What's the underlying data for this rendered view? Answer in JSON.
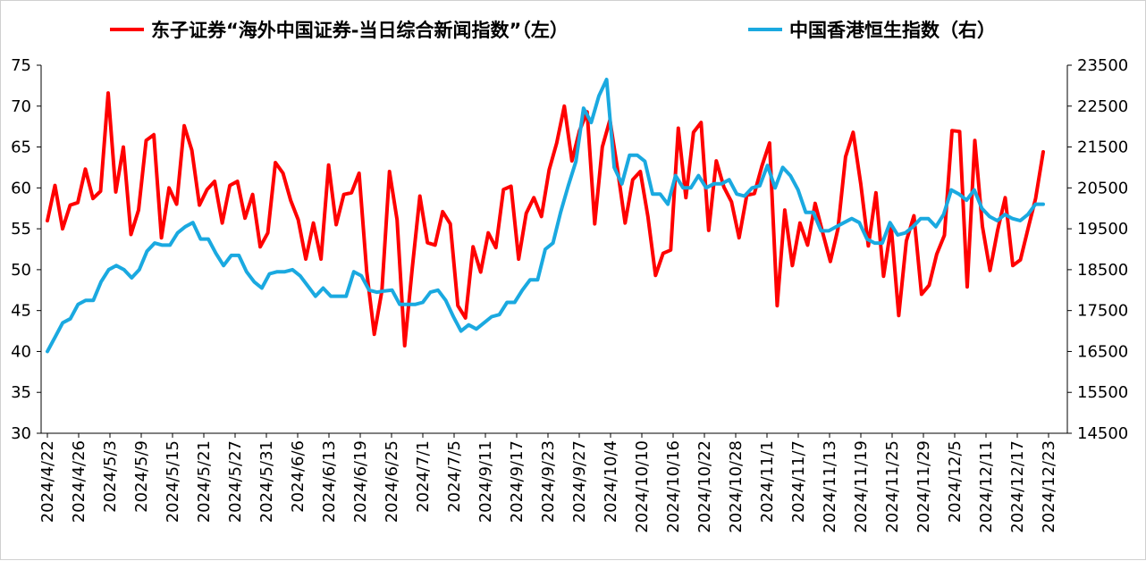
{
  "chart_data": {
    "type": "line",
    "legend": [
      {
        "label": "东子证券“海外中国证券-当日综合新闻指数”（左）",
        "color": "#ff0000"
      },
      {
        "label": "中国香港恒生指数（右）",
        "color": "#1aa9e0"
      }
    ],
    "legend_position": "top",
    "grid": false,
    "y_left": {
      "min": 30,
      "max": 75,
      "step": 5,
      "ticks": [
        "30",
        "35",
        "40",
        "45",
        "50",
        "55",
        "60",
        "65",
        "70",
        "75"
      ]
    },
    "y_right": {
      "min": 14500,
      "max": 23500,
      "step": 1000,
      "ticks": [
        "14500",
        "15500",
        "16500",
        "17500",
        "18500",
        "19500",
        "20500",
        "21500",
        "22500",
        "23500"
      ]
    },
    "x_tick_labels": [
      "2024/4/22",
      "2024/4/26",
      "2024/5/3",
      "2024/5/9",
      "2024/5/15",
      "2024/5/21",
      "2024/5/27",
      "2024/5/31",
      "2024/6/6",
      "2024/6/13",
      "2024/6/19",
      "2024/6/25",
      "2024/7/1",
      "2024/7/5",
      "2024/9/11",
      "2024/9/17",
      "2024/9/23",
      "2024/9/27",
      "2024/10/4",
      "2024/10/10",
      "2024/10/16",
      "2024/10/22",
      "2024/10/28",
      "2024/11/1",
      "2024/11/7",
      "2024/11/13",
      "2024/11/19",
      "2024/11/25",
      "2024/11/29",
      "2024/12/5",
      "2024/12/11",
      "2024/12/17",
      "2024/12/23"
    ],
    "series": [
      {
        "name": "东子证券“海外中国证券-当日综合新闻指数”（左）",
        "axis": "left",
        "color": "#ff0000",
        "values": [
          56,
          60.3,
          55,
          57.9,
          58.2,
          62.3,
          58.7,
          59.6,
          71.6,
          59.5,
          65,
          54.3,
          57.3,
          65.8,
          66.5,
          53.9,
          60,
          58,
          67.6,
          64.6,
          57.9,
          59.8,
          60.8,
          55.7,
          60.3,
          60.8,
          56.3,
          59.2,
          52.8,
          54.5,
          63.1,
          61.8,
          58.5,
          56.1,
          51.3,
          55.7,
          51.3,
          62.8,
          55.5,
          59.2,
          59.4,
          61.8,
          49.8,
          42.1,
          47.4,
          62,
          56.1,
          40.7,
          50.2,
          59,
          53.3,
          53,
          57.1,
          55.6,
          45.6,
          44.1,
          52.8,
          49.7,
          54.5,
          52.7,
          59.8,
          60.2,
          51.3,
          56.9,
          58.8,
          56.5,
          62.2,
          65.5,
          70,
          63.3,
          67,
          69.3,
          55.6,
          65,
          68.3,
          62.3,
          55.7,
          61,
          62,
          56.5,
          49.3,
          52,
          52.4,
          67.3,
          58.8,
          66.8,
          68,
          54.8,
          63.3,
          60.1,
          58.3,
          53.9,
          59.1,
          59.3,
          62.7,
          65.5,
          45.6,
          57.3,
          50.5,
          55.7,
          53,
          58.1,
          54.5,
          51,
          55,
          63.8,
          66.8,
          60.5,
          52.9,
          59.4,
          49.2,
          55.3,
          44.4,
          53.5,
          56.6,
          47,
          48.1,
          51.9,
          54.2,
          67,
          66.9,
          47.9,
          65.8,
          55.3,
          49.9,
          54.8,
          58.8,
          50.5,
          51.2,
          55,
          58.7,
          64.4
        ]
      },
      {
        "name": "中国香港恒生指数（右）",
        "axis": "right",
        "color": "#1aa9e0",
        "values": [
          16500,
          16850,
          17200,
          17300,
          17650,
          17750,
          17750,
          18200,
          18500,
          18600,
          18500,
          18300,
          18500,
          18950,
          19150,
          19100,
          19100,
          19400,
          19550,
          19650,
          19250,
          19250,
          18900,
          18600,
          18850,
          18850,
          18450,
          18200,
          18050,
          18400,
          18450,
          18450,
          18500,
          18350,
          18100,
          17850,
          18050,
          17850,
          17850,
          17850,
          18450,
          18350,
          18000,
          17950,
          17980,
          18000,
          17650,
          17650,
          17650,
          17700,
          17950,
          18000,
          17750,
          17350,
          17000,
          17150,
          17050,
          17200,
          17350,
          17400,
          17700,
          17700,
          18000,
          18250,
          18250,
          19000,
          19150,
          19900,
          20550,
          21150,
          22450,
          22100,
          22750,
          23150,
          21000,
          20600,
          21300,
          21300,
          21150,
          20350,
          20350,
          20100,
          20800,
          20500,
          20500,
          20800,
          20500,
          20600,
          20600,
          20700,
          20350,
          20300,
          20500,
          20550,
          21050,
          20500,
          21000,
          20800,
          20450,
          19900,
          19900,
          19450,
          19450,
          19550,
          19650,
          19750,
          19650,
          19250,
          19150,
          19150,
          19650,
          19350,
          19400,
          19550,
          19750,
          19750,
          19550,
          19850,
          20450,
          20350,
          20200,
          20450,
          20000,
          19800,
          19700,
          19850,
          19750,
          19700,
          19850,
          20100,
          20100
        ]
      }
    ]
  }
}
